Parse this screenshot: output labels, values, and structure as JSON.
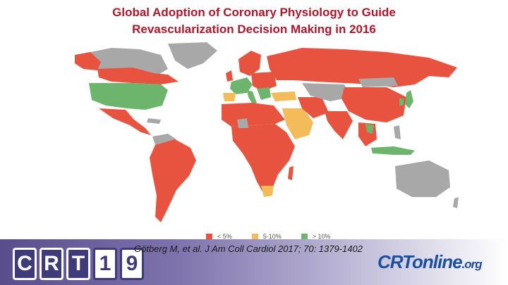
{
  "title": {
    "line1": "Global Adoption of Coronary Physiology to Guide",
    "line2": "Revascularization Decision Making in 2016"
  },
  "legend": [
    {
      "label": "< 5%",
      "color": "#e8533f"
    },
    {
      "label": "5-10%",
      "color": "#f3bb5a"
    },
    {
      "label": "> 10%",
      "color": "#6db56d"
    }
  ],
  "no_data_color": "#a8a8a8",
  "citation": "Götberg M, et al. J Am Coll Cardiol 2017; 70: 1379-1402",
  "crt_logo": {
    "letters": [
      "C",
      "R",
      "T"
    ],
    "digits": [
      "1",
      "9"
    ]
  },
  "crtonline_logo": {
    "main": "CRTonline",
    "suffix": ".org"
  }
}
